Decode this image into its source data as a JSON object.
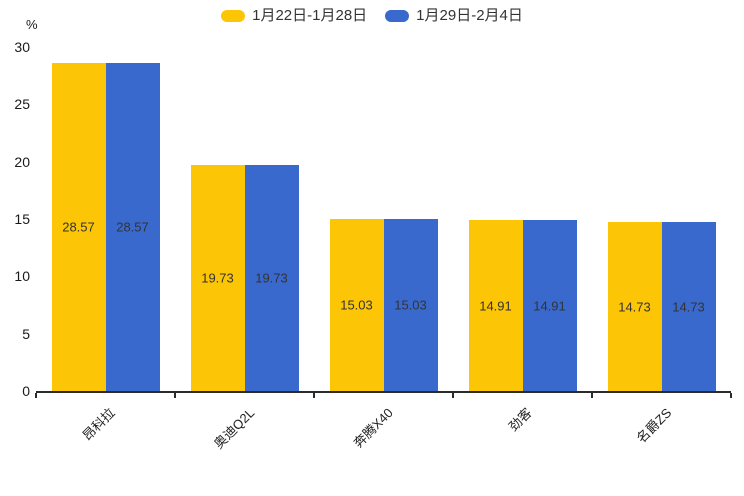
{
  "chart_data": {
    "type": "bar",
    "title": "",
    "categories": [
      "昂科拉",
      "奥迪Q2L",
      "奔腾X40",
      "劲客",
      "名爵ZS"
    ],
    "series": [
      {
        "name": "1月22日-1月28日",
        "color": "#FCC607",
        "values": [
          28.57,
          19.73,
          15.03,
          14.91,
          14.73
        ]
      },
      {
        "name": "1月29日-2月4日",
        "color": "#3A69CD",
        "values": [
          28.57,
          19.73,
          15.03,
          14.91,
          14.73
        ]
      }
    ],
    "xlabel": "",
    "ylabel": "%",
    "ylim": [
      0,
      30
    ],
    "yticks": [
      30,
      25,
      20,
      15,
      10,
      5,
      0
    ],
    "grid": false,
    "legend_position": "top",
    "data_labels": "inside-center",
    "category_label_rotation": -45
  },
  "colors": {
    "background": "#ffffff",
    "axis": "#2b2b2b",
    "tick_label": "#1a1a1a",
    "data_label": "#333333",
    "legend_text": "#333333"
  }
}
